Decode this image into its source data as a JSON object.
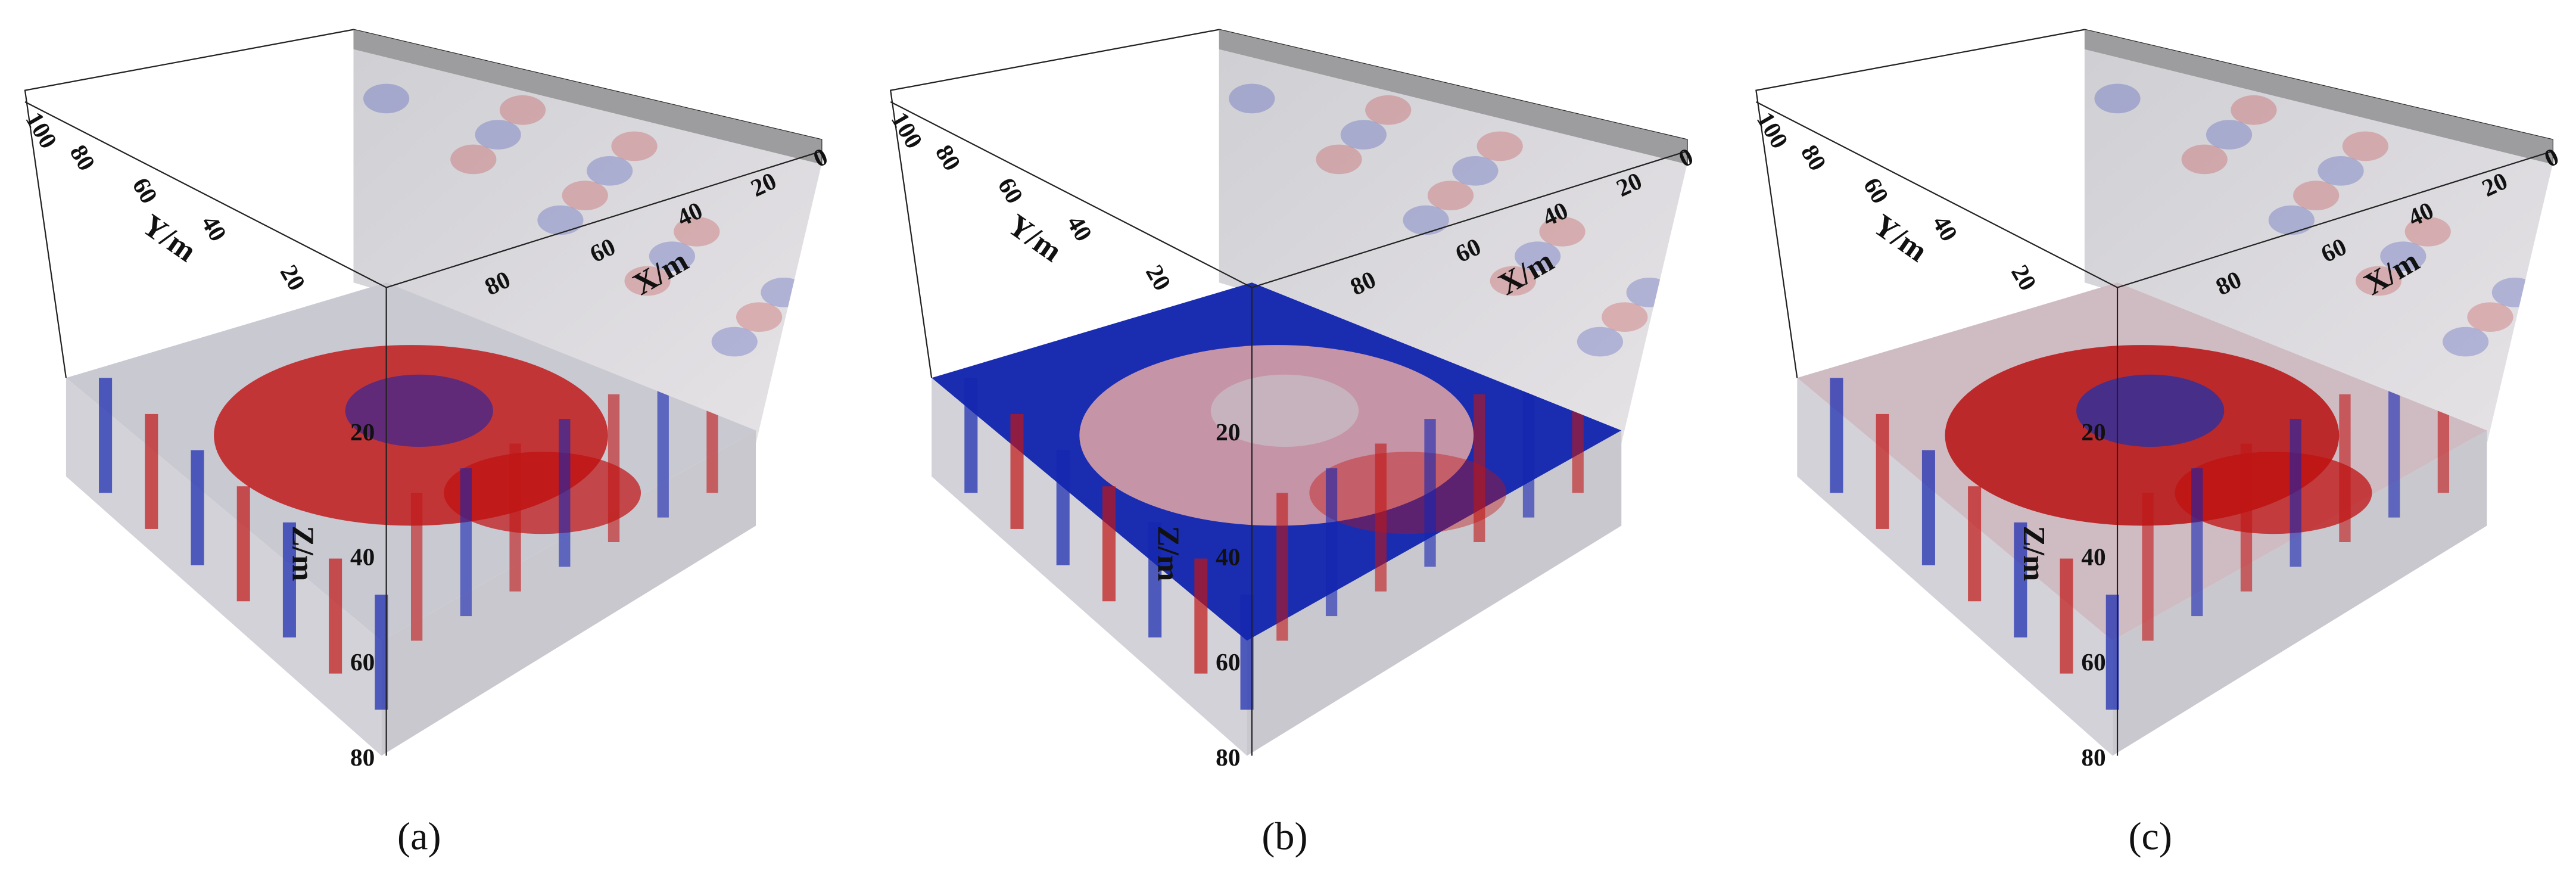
{
  "panels": [
    {
      "label": "(a)",
      "y_axis": {
        "title": "Y/m",
        "ticks": [
          100,
          80,
          60,
          40,
          20
        ]
      },
      "x_axis": {
        "title": "X/m",
        "ticks": [
          80,
          60,
          40,
          20,
          0
        ]
      },
      "z_axis": {
        "title": "Z/m",
        "ticks": [
          20,
          40,
          60,
          80
        ]
      }
    },
    {
      "label": "(b)",
      "y_axis": {
        "title": "Y/m",
        "ticks": [
          100,
          80,
          60,
          40,
          20
        ]
      },
      "x_axis": {
        "title": "X/m",
        "ticks": [
          80,
          60,
          40,
          20,
          0
        ]
      },
      "z_axis": {
        "title": "Z/m",
        "ticks": [
          20,
          40,
          60,
          80
        ]
      }
    },
    {
      "label": "(c)",
      "y_axis": {
        "title": "Y/m",
        "ticks": [
          100,
          80,
          60,
          40,
          20
        ]
      },
      "x_axis": {
        "title": "X/m",
        "ticks": [
          80,
          60,
          40,
          20,
          0
        ]
      },
      "z_axis": {
        "title": "Z/m",
        "ticks": [
          20,
          40,
          60,
          80
        ]
      }
    }
  ]
}
